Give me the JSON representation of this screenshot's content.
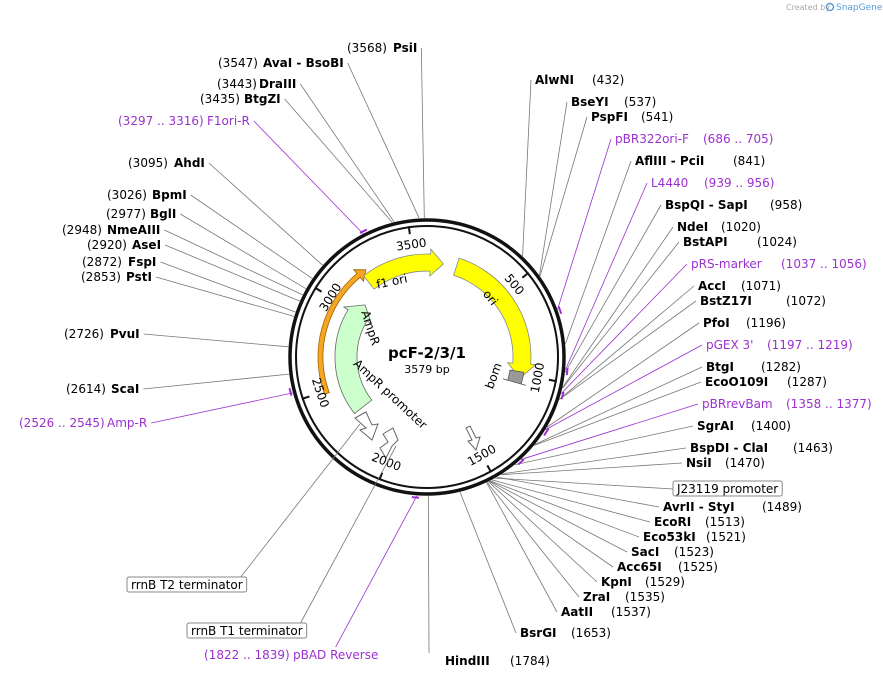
{
  "header": {
    "credit": "Created by",
    "brand": "SnapGene"
  },
  "map": {
    "name": "pcF-2/3/1",
    "length": "3579 bp",
    "ticks": [
      500,
      1000,
      1500,
      2000,
      2500,
      3000,
      3500
    ]
  },
  "features": [
    "f1 ori",
    "ori",
    "bom",
    "AmpR",
    "AmpR promoter"
  ],
  "enzymes": [
    {
      "name": "AlwNI",
      "location": "(432)"
    },
    {
      "name": "BseYI",
      "location": "(537)"
    },
    {
      "name": "PspFI",
      "location": "(541)"
    },
    {
      "name": "AflIII - PciI",
      "location": "(841)"
    },
    {
      "name": "BspQI - SapI",
      "location": "(958)"
    },
    {
      "name": "NdeI",
      "location": "(1020)"
    },
    {
      "name": "BstAPI",
      "location": "(1024)"
    },
    {
      "name": "AccI",
      "location": "(1071)"
    },
    {
      "name": "BstZ17I",
      "location": "(1072)"
    },
    {
      "name": "PfoI",
      "location": "(1196)"
    },
    {
      "name": "BtgI",
      "location": "(1282)"
    },
    {
      "name": "EcoO109I",
      "location": "(1287)"
    },
    {
      "name": "SgrAI",
      "location": "(1400)"
    },
    {
      "name": "BspDI - ClaI",
      "location": "(1463)"
    },
    {
      "name": "NsiI",
      "location": "(1470)"
    },
    {
      "name": "AvrII - StyI",
      "location": "(1489)"
    },
    {
      "name": "EcoRI",
      "location": "(1513)"
    },
    {
      "name": "Eco53kI",
      "location": "(1521)"
    },
    {
      "name": "SacI",
      "location": "(1523)"
    },
    {
      "name": "Acc65I",
      "location": "(1525)"
    },
    {
      "name": "KpnI",
      "location": "(1529)"
    },
    {
      "name": "ZraI",
      "location": "(1535)"
    },
    {
      "name": "AatII",
      "location": "(1537)"
    },
    {
      "name": "BsrGI",
      "location": "(1653)"
    },
    {
      "name": "HindIII",
      "location": "(1784)"
    },
    {
      "name": "ScaI",
      "location": "(2614)"
    },
    {
      "name": "PvuI",
      "location": "(2726)"
    },
    {
      "name": "PstI",
      "location": "(2853)"
    },
    {
      "name": "FspI",
      "location": "(2872)"
    },
    {
      "name": "AseI",
      "location": "(2920)"
    },
    {
      "name": "NmeAIII",
      "location": "(2948)"
    },
    {
      "name": "BglI",
      "location": "(2977)"
    },
    {
      "name": "BpmI",
      "location": "(3026)"
    },
    {
      "name": "AhdI",
      "location": "(3095)"
    },
    {
      "name": "BtgZI",
      "location": "(3435)"
    },
    {
      "name": "DraIII",
      "location": "(3443)"
    },
    {
      "name": "AvaI - BsoBI",
      "location": "(3547)"
    },
    {
      "name": "PsiI",
      "location": "(3568)"
    }
  ],
  "primer_color": "#9b30d0",
  "primers": [
    {
      "name": "pBR322ori-F",
      "location": "(686 .. 705)"
    },
    {
      "name": "L4440",
      "location": "(939 .. 956)"
    },
    {
      "name": "pRS-marker",
      "location": "(1037 .. 1056)"
    },
    {
      "name": "pGEX 3'",
      "location": "(1197 .. 1219)"
    },
    {
      "name": "pBRrevBam",
      "location": "(1358 .. 1377)"
    },
    {
      "name": "pBAD Reverse",
      "location": "(1822 .. 1839)"
    },
    {
      "name": "Amp-R",
      "location": "(2526 .. 2545)"
    },
    {
      "name": "F1ori-R",
      "location": "(3297 .. 3316)"
    }
  ],
  "callouts": [
    "J23119 promoter",
    "rrnB T2 terminator",
    "rrnB T1 terminator"
  ]
}
